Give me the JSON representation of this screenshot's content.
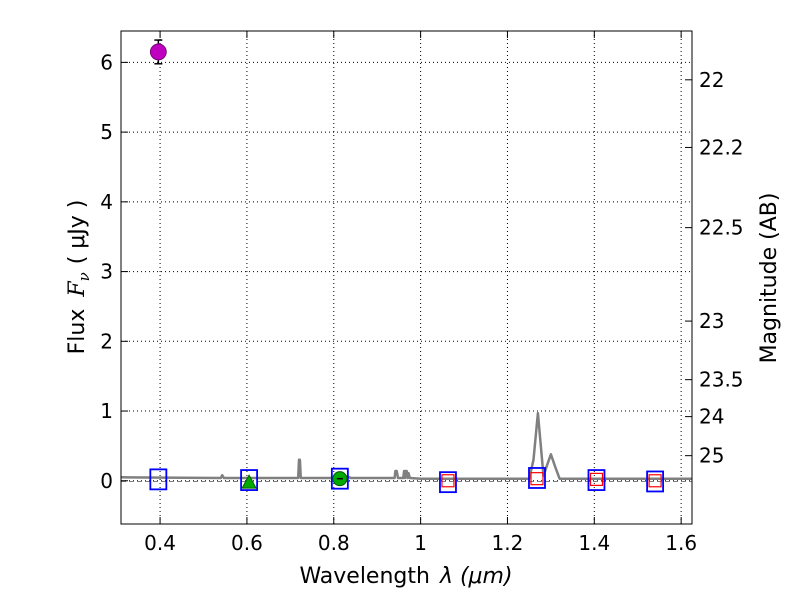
{
  "chart_data": {
    "type": "scatter",
    "xlabel": "Wavelength",
    "xlabel_math": "λ (μm)",
    "ylabel": "Flux",
    "ylabel_math": "F",
    "ylabel_sub": "ν",
    "ylabel_unit": "( μJy )",
    "y2label": "Magnitude (AB)",
    "xlim": [
      0.31,
      1.625
    ],
    "ylim": [
      -0.62,
      6.45
    ],
    "grid": true,
    "x_ticks": [
      0.4,
      0.6,
      0.8,
      1.0,
      1.2,
      1.4,
      1.6
    ],
    "x_tick_labels": [
      "0.4",
      "0.6",
      "0.8",
      "1",
      "1.2",
      "1.4",
      "1.6"
    ],
    "y_ticks": [
      0,
      1,
      2,
      3,
      4,
      5,
      6
    ],
    "y_tick_labels": [
      "0",
      "1",
      "2",
      "3",
      "4",
      "5",
      "6"
    ],
    "y2_ticks": [
      {
        "flux": 5.75,
        "label": "22"
      },
      {
        "flux": 4.78,
        "label": "22.2"
      },
      {
        "flux": 3.63,
        "label": "22.5"
      },
      {
        "flux": 2.29,
        "label": "23"
      },
      {
        "flux": 1.45,
        "label": "23.5"
      },
      {
        "flux": 0.92,
        "label": "24"
      },
      {
        "flux": 0.36,
        "label": "25"
      }
    ],
    "spectrum": {
      "color": "#808080",
      "x": [
        0.31,
        0.54,
        0.543,
        0.547,
        0.55,
        0.718,
        0.72,
        0.722,
        0.724,
        0.8,
        0.81,
        0.82,
        0.83,
        0.84,
        0.85,
        0.94,
        0.942,
        0.945,
        0.948,
        0.96,
        0.962,
        0.964,
        0.966,
        0.968,
        0.97,
        0.972,
        0.975,
        1.0,
        1.25,
        1.26,
        1.27,
        1.283,
        1.29,
        1.3,
        1.31,
        1.32,
        1.5,
        1.625
      ],
      "y": [
        0.05,
        0.04,
        0.08,
        0.04,
        0.04,
        0.04,
        0.3,
        0.3,
        0.04,
        0.04,
        0.05,
        0.06,
        0.06,
        0.04,
        0.04,
        0.04,
        0.14,
        0.14,
        0.04,
        0.04,
        0.14,
        0.04,
        0.14,
        0.14,
        0.04,
        0.11,
        0.04,
        0.03,
        0.03,
        0.3,
        0.97,
        0.07,
        0.2,
        0.38,
        0.2,
        0.03,
        0.03,
        0.03
      ]
    },
    "dashed_line": {
      "y": -0.01,
      "color": "#808080"
    },
    "blue_squares": [
      {
        "x": 0.396,
        "y": 0.02
      },
      {
        "x": 0.605,
        "y": 0.01
      },
      {
        "x": 0.814,
        "y": 0.03
      },
      {
        "x": 1.063,
        "y": -0.02
      },
      {
        "x": 1.268,
        "y": 0.04
      },
      {
        "x": 1.405,
        "y": 0.01
      },
      {
        "x": 1.54,
        "y": -0.01
      }
    ],
    "red_squares": [
      {
        "x": 1.063,
        "y": 0.0
      },
      {
        "x": 1.268,
        "y": 0.03
      },
      {
        "x": 1.405,
        "y": 0.02
      },
      {
        "x": 1.54,
        "y": 0.0
      }
    ],
    "magenta_point": {
      "x": 0.396,
      "y": 6.15,
      "err": 0.17
    },
    "green_circle": {
      "x": 0.814,
      "y": 0.03
    },
    "green_triangle": {
      "x": 0.605,
      "y": -0.02
    },
    "colors": {
      "magenta": "#bf00bf",
      "blue": "#0000ff",
      "red": "#ff0000",
      "green": "#00aa00",
      "green_edge": "#006000",
      "spectrum": "#808080",
      "grid": "#000000"
    }
  }
}
